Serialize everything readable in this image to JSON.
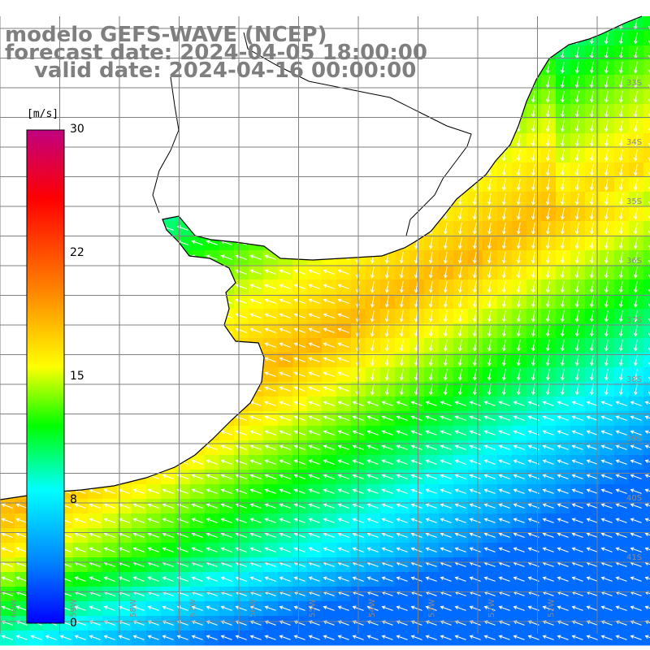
{
  "title": {
    "line1": "modelo GEFS-WAVE (NCEP)",
    "line2": "forecast date: 2024-04-05 18:00:00",
    "line3": "valid date: 2024-04-16 00:00:00"
  },
  "colorbar": {
    "unit": "[m/s]",
    "min": 0,
    "max": 30,
    "ticks": [
      "30",
      "22",
      "15",
      "8",
      "0"
    ],
    "stops": [
      "#0000ff",
      "#0080ff",
      "#00ffff",
      "#00ff00",
      "#ffff00",
      "#ff8000",
      "#ff0000",
      "#c00080"
    ]
  },
  "map": {
    "field": "wind speed and direction",
    "lat_labels": [
      "33S",
      "34S",
      "35S",
      "36S",
      "37S",
      "38S",
      "39S",
      "40S",
      "41S"
    ],
    "lon_labels": [
      "60W",
      "59W",
      "58W",
      "57W",
      "56W",
      "55W",
      "54W",
      "53W",
      "52W",
      "51W"
    ],
    "colors": {
      "land": "#ffffff",
      "grid": "#808080",
      "coast": "#000000",
      "arrow": "#ffffff"
    }
  }
}
